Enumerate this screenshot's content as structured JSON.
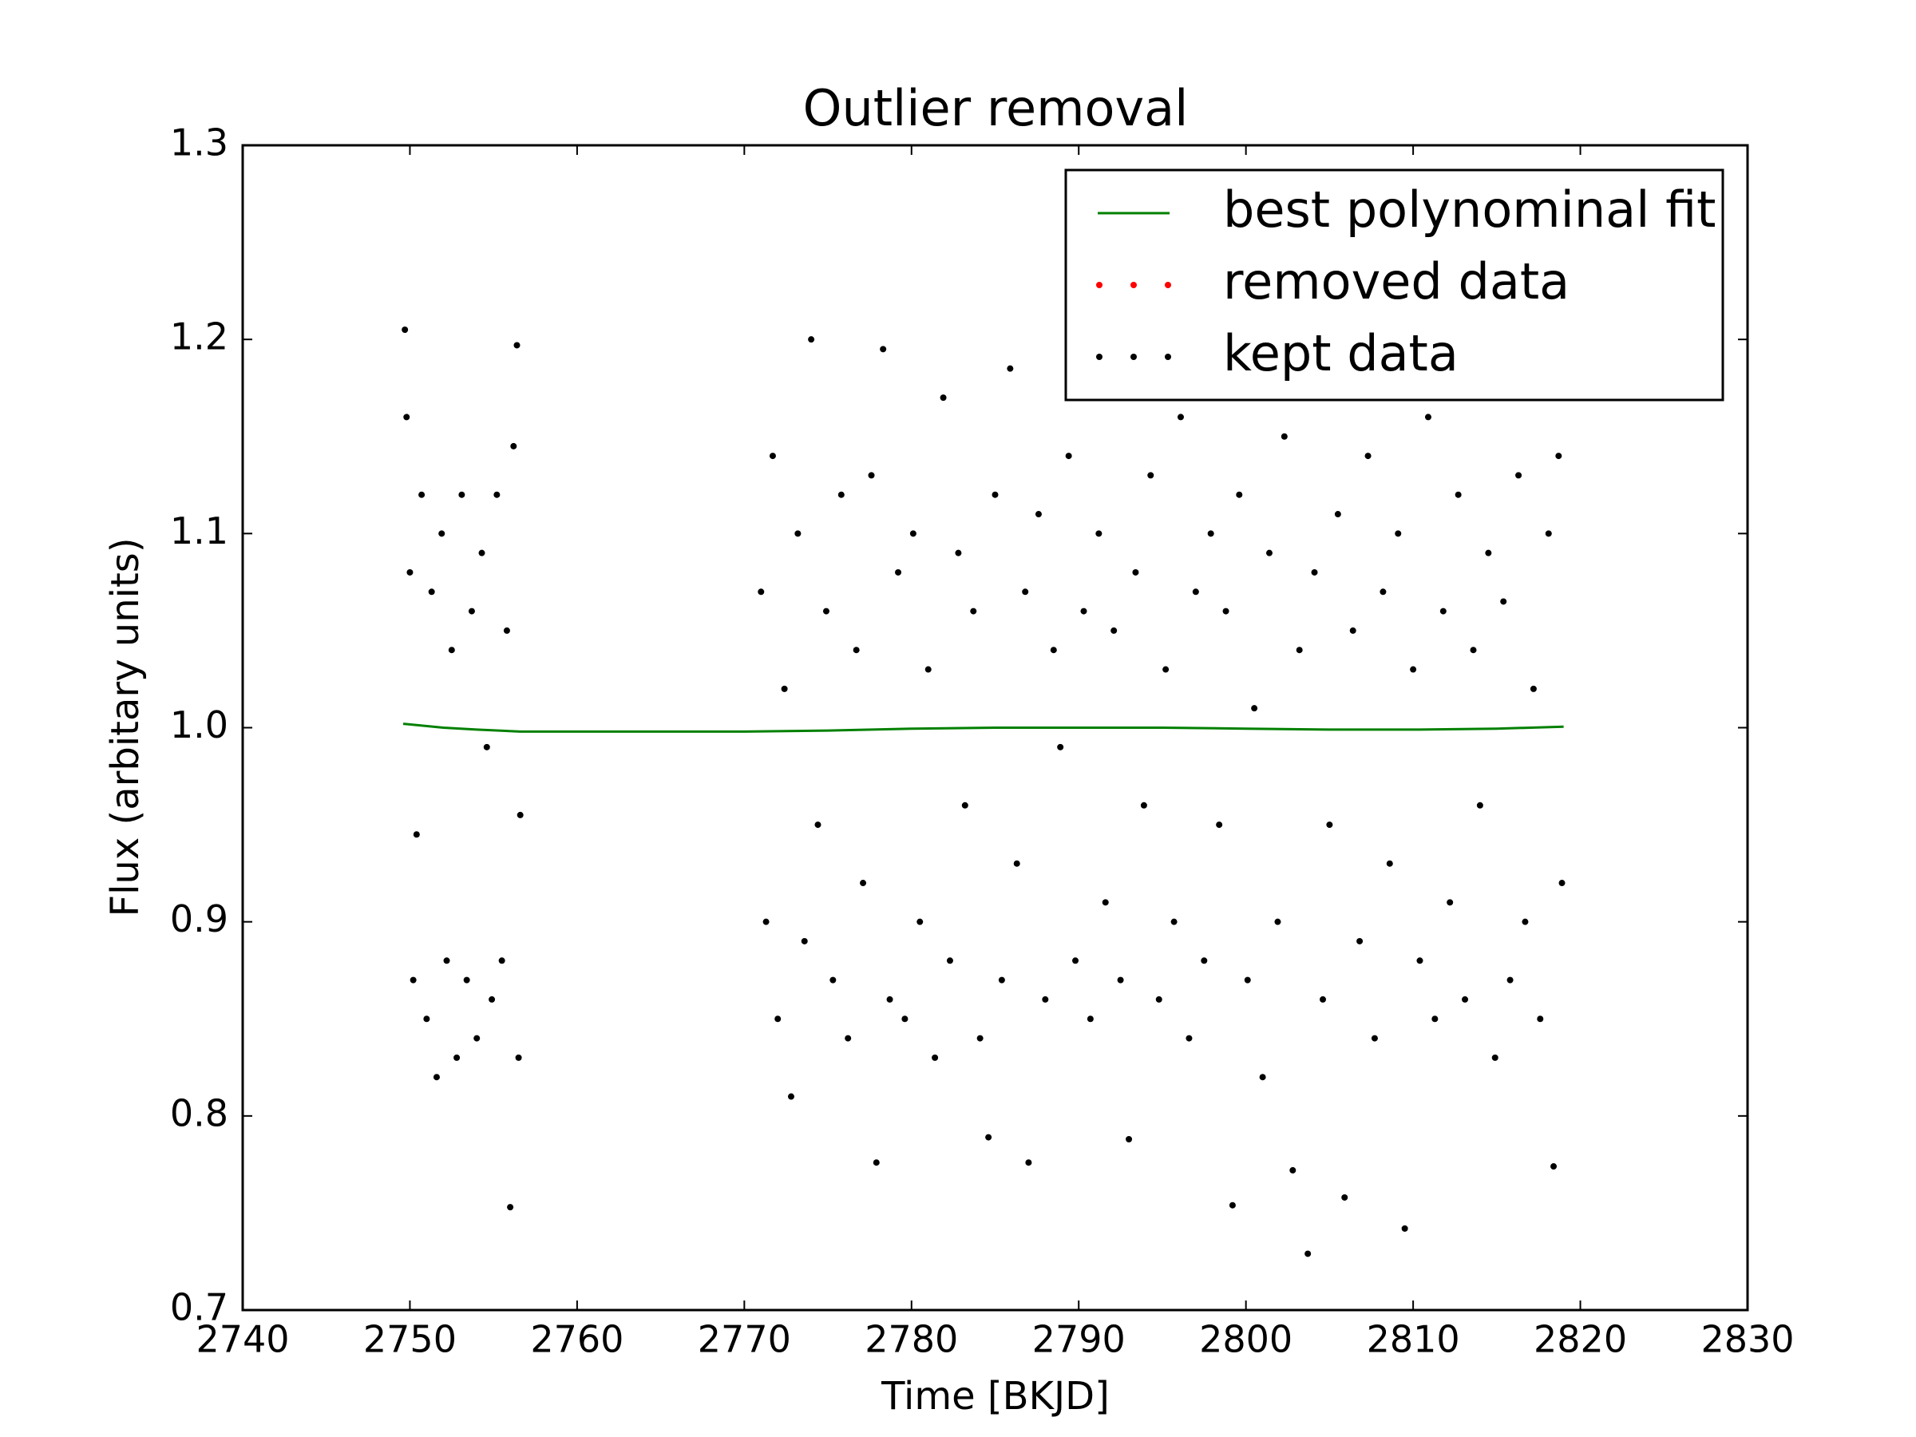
{
  "chart_data": {
    "type": "scatter",
    "title": "Outlier removal",
    "x_label": "Time [BKJD]",
    "y_label": "Flux (arbitary units)",
    "xlim": [
      2740,
      2830
    ],
    "xticks": [
      2740,
      2750,
      2760,
      2770,
      2780,
      2790,
      2800,
      2810,
      2820,
      2830
    ],
    "ylim": [
      0.7,
      1.3
    ],
    "yticks": [
      0.7,
      0.8,
      0.9,
      {
        "value": 1,
        "label": "1.0"
      },
      1.1,
      1.2,
      1.3
    ],
    "grid": false,
    "legend": "upper right",
    "series": [
      {
        "name": "best polynominal fit",
        "color": "#008000",
        "style": "line",
        "x": [
          2749.6,
          2752,
          2754,
          2756.6,
          2760,
          2765,
          2770,
          2775,
          2780,
          2785,
          2790,
          2795,
          2800,
          2805,
          2810,
          2815,
          2819
        ],
        "values": [
          1.002,
          1.0,
          0.999,
          0.998,
          0.998,
          0.998,
          0.998,
          0.9985,
          0.9995,
          1.0,
          1.0,
          1.0,
          0.9995,
          0.999,
          0.999,
          0.9995,
          1.0005
        ]
      },
      {
        "name": "removed data",
        "color": "#ff0000",
        "style": "dots",
        "x": [],
        "values": []
      },
      {
        "name": "kept data",
        "color": "#000000",
        "style": "dots",
        "x": [
          2749.7,
          2749.8,
          2750.0,
          2750.2,
          2750.4,
          2750.7,
          2751.0,
          2751.3,
          2751.6,
          2751.9,
          2752.2,
          2752.5,
          2752.8,
          2753.1,
          2753.4,
          2753.7,
          2754.0,
          2754.3,
          2754.6,
          2754.9,
          2755.2,
          2755.5,
          2755.8,
          2756.0,
          2756.2,
          2756.4,
          2756.5,
          2756.6,
          2771.0,
          2771.3,
          2771.7,
          2772.0,
          2772.4,
          2772.8,
          2773.2,
          2773.6,
          2774.0,
          2774.4,
          2774.9,
          2775.3,
          2775.8,
          2776.2,
          2776.7,
          2777.1,
          2777.6,
          2777.9,
          2778.3,
          2778.7,
          2779.2,
          2779.6,
          2780.1,
          2780.5,
          2781.0,
          2781.4,
          2781.9,
          2782.3,
          2782.8,
          2783.2,
          2783.7,
          2784.1,
          2784.6,
          2785.0,
          2785.4,
          2785.9,
          2786.3,
          2786.8,
          2787.0,
          2787.6,
          2788.0,
          2788.5,
          2788.9,
          2789.4,
          2789.8,
          2790.3,
          2790.7,
          2791.2,
          2791.6,
          2792.1,
          2792.5,
          2793.0,
          2793.4,
          2793.9,
          2794.3,
          2794.8,
          2795.2,
          2795.7,
          2796.1,
          2796.6,
          2797.0,
          2797.5,
          2797.9,
          2798.4,
          2798.8,
          2799.2,
          2799.6,
          2800.1,
          2800.5,
          2801.0,
          2801.4,
          2801.9,
          2802.3,
          2802.8,
          2803.2,
          2803.7,
          2804.1,
          2804.6,
          2805.0,
          2805.5,
          2805.9,
          2806.4,
          2806.8,
          2807.3,
          2807.7,
          2808.2,
          2808.6,
          2809.1,
          2809.5,
          2810.0,
          2810.4,
          2810.9,
          2811.3,
          2811.8,
          2812.2,
          2812.7,
          2813.1,
          2813.6,
          2814.0,
          2814.5,
          2814.9,
          2815.4,
          2815.8,
          2816.3,
          2816.7,
          2817.2,
          2817.6,
          2818.1,
          2818.4,
          2818.7,
          2818.9
        ],
        "values": [
          1.205,
          1.16,
          1.08,
          0.87,
          0.945,
          1.12,
          0.85,
          1.07,
          0.82,
          1.1,
          0.88,
          1.04,
          0.83,
          1.12,
          0.87,
          1.06,
          0.84,
          1.09,
          0.99,
          0.86,
          1.12,
          0.88,
          1.05,
          0.753,
          1.145,
          1.197,
          0.83,
          0.955,
          1.07,
          0.9,
          1.14,
          0.85,
          1.02,
          0.81,
          1.1,
          0.89,
          1.2,
          0.95,
          1.06,
          0.87,
          1.12,
          0.84,
          1.04,
          0.92,
          1.13,
          0.776,
          1.195,
          0.86,
          1.08,
          0.85,
          1.1,
          0.9,
          1.03,
          0.83,
          1.17,
          0.88,
          1.09,
          0.96,
          1.06,
          0.84,
          0.789,
          1.12,
          0.87,
          1.185,
          0.93,
          1.07,
          0.776,
          1.11,
          0.86,
          1.04,
          0.99,
          1.14,
          0.88,
          1.06,
          0.85,
          1.1,
          0.91,
          1.05,
          0.87,
          0.788,
          1.08,
          0.96,
          1.13,
          0.86,
          1.03,
          0.9,
          1.16,
          0.84,
          1.07,
          0.88,
          1.1,
          0.95,
          1.06,
          0.754,
          1.12,
          0.87,
          1.01,
          0.82,
          1.09,
          0.9,
          1.15,
          0.772,
          1.04,
          0.729,
          1.08,
          0.86,
          0.95,
          1.11,
          0.758,
          1.05,
          0.89,
          1.14,
          0.84,
          1.07,
          0.93,
          1.1,
          0.742,
          1.03,
          0.88,
          1.16,
          0.85,
          1.06,
          0.91,
          1.12,
          0.86,
          1.04,
          0.96,
          1.09,
          0.83,
          1.065,
          0.87,
          1.13,
          0.9,
          1.02,
          0.85,
          1.1,
          0.774,
          1.14,
          0.92
        ]
      }
    ]
  }
}
